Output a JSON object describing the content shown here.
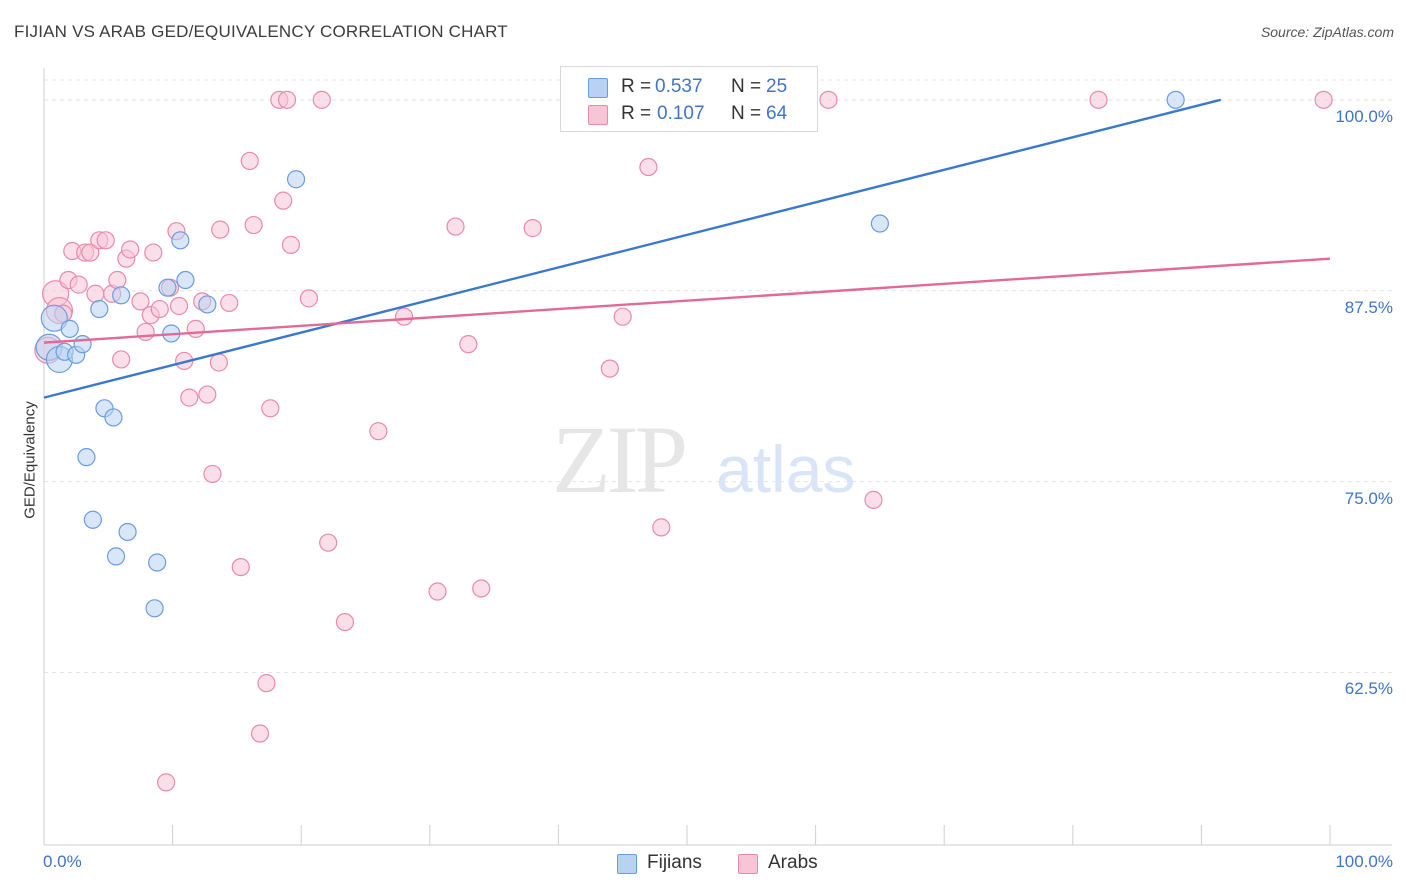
{
  "header": {
    "title": "FIJIAN VS ARAB GED/EQUIVALENCY CORRELATION CHART",
    "source": "Source: ZipAtlas.com"
  },
  "watermark": {
    "zip": "ZIP",
    "atlas": "atlas"
  },
  "legend": {
    "rows": [
      {
        "r_key": "R =",
        "r_value": "0.537",
        "n_key": "N =",
        "n_value": "25",
        "fill": "#b9d1f3",
        "stroke": "#6a9ce0"
      },
      {
        "r_key": "R =",
        "r_value": "0.107",
        "n_key": "N =",
        "n_value": "64",
        "fill": "#f7c5d5",
        "stroke": "#e98aaa"
      }
    ]
  },
  "bottom_legend": {
    "fijians": "Fijians",
    "arabs": "Arabs"
  },
  "colors": {
    "blue": "#3a78d0",
    "pink": "#e06b96",
    "blue_fill": "#b9d1f3",
    "pink_fill": "#f7c5d5",
    "tick_text": "#3f74c7"
  },
  "chart_data": {
    "type": "scatter",
    "title": "FIJIAN VS ARAB GED/EQUIVALENCY CORRELATION CHART",
    "xlabel": "",
    "ylabel": "GED/Equivalency",
    "xlim": [
      0,
      100
    ],
    "ylim": [
      51.2,
      101.3
    ],
    "x_tick_labels": [
      "0.0%",
      "100.0%"
    ],
    "y_ticks": [
      62.5,
      75.0,
      87.5,
      100.0
    ],
    "y_tick_labels": [
      "62.5%",
      "75.0%",
      "87.5%",
      "100.0%"
    ],
    "grid": true,
    "series": [
      {
        "name": "Fijians",
        "color": "#3a78d0",
        "trend": {
          "x": [
            0,
            91.5
          ],
          "y": [
            80.5,
            100.0
          ]
        },
        "points": [
          [
            0.4,
            83.8
          ],
          [
            0.8,
            85.7
          ],
          [
            1.2,
            83.0
          ],
          [
            1.6,
            83.5
          ],
          [
            2.0,
            85.0
          ],
          [
            2.5,
            83.3
          ],
          [
            3.0,
            84.0
          ],
          [
            3.3,
            76.6
          ],
          [
            3.8,
            72.5
          ],
          [
            4.3,
            86.3
          ],
          [
            4.7,
            79.8
          ],
          [
            5.4,
            79.2
          ],
          [
            5.6,
            70.1
          ],
          [
            6.0,
            87.2
          ],
          [
            6.5,
            71.7
          ],
          [
            8.6,
            66.7
          ],
          [
            8.8,
            69.7
          ],
          [
            9.6,
            87.7
          ],
          [
            9.9,
            84.7
          ],
          [
            10.6,
            90.8
          ],
          [
            11.0,
            88.2
          ],
          [
            12.7,
            86.6
          ],
          [
            19.6,
            94.8
          ],
          [
            65.0,
            91.9
          ],
          [
            88.0,
            100.0
          ]
        ]
      },
      {
        "name": "Arabs",
        "color": "#e06b96",
        "trend": {
          "x": [
            0,
            100
          ],
          "y": [
            84.1,
            89.6
          ]
        },
        "points": [
          [
            0.3,
            83.6
          ],
          [
            0.9,
            87.3
          ],
          [
            1.2,
            86.2
          ],
          [
            1.5,
            86.0
          ],
          [
            1.9,
            88.2
          ],
          [
            2.2,
            90.1
          ],
          [
            2.7,
            87.9
          ],
          [
            3.2,
            90.0
          ],
          [
            3.6,
            90.0
          ],
          [
            4.0,
            87.3
          ],
          [
            4.3,
            90.8
          ],
          [
            4.8,
            90.8
          ],
          [
            5.3,
            87.3
          ],
          [
            5.7,
            88.2
          ],
          [
            6.0,
            83.0
          ],
          [
            6.4,
            89.6
          ],
          [
            6.7,
            90.2
          ],
          [
            7.5,
            86.8
          ],
          [
            7.9,
            84.8
          ],
          [
            8.3,
            85.9
          ],
          [
            8.5,
            90.0
          ],
          [
            9.0,
            86.3
          ],
          [
            9.5,
            55.3
          ],
          [
            9.8,
            87.7
          ],
          [
            10.3,
            91.4
          ],
          [
            10.5,
            86.5
          ],
          [
            10.9,
            82.9
          ],
          [
            11.3,
            80.5
          ],
          [
            11.8,
            85.0
          ],
          [
            12.3,
            86.8
          ],
          [
            12.7,
            80.7
          ],
          [
            13.1,
            75.5
          ],
          [
            13.6,
            82.8
          ],
          [
            13.7,
            91.5
          ],
          [
            14.4,
            86.7
          ],
          [
            15.3,
            69.4
          ],
          [
            16.0,
            96.0
          ],
          [
            16.3,
            91.8
          ],
          [
            16.8,
            58.5
          ],
          [
            17.3,
            61.8
          ],
          [
            17.6,
            79.8
          ],
          [
            18.3,
            100.0
          ],
          [
            18.6,
            93.4
          ],
          [
            18.9,
            100.0
          ],
          [
            19.2,
            90.5
          ],
          [
            20.6,
            87.0
          ],
          [
            21.6,
            100.0
          ],
          [
            22.1,
            71.0
          ],
          [
            23.4,
            65.8
          ],
          [
            26.0,
            78.3
          ],
          [
            28.0,
            85.8
          ],
          [
            30.6,
            67.8
          ],
          [
            32.0,
            91.7
          ],
          [
            33.0,
            84.0
          ],
          [
            34.0,
            68.0
          ],
          [
            38.0,
            91.6
          ],
          [
            44.0,
            82.4
          ],
          [
            45.0,
            85.8
          ],
          [
            47.0,
            95.6
          ],
          [
            48.0,
            72.0
          ],
          [
            61.0,
            100.0
          ],
          [
            64.5,
            73.8
          ],
          [
            82.0,
            100.0
          ],
          [
            99.5,
            100.0
          ]
        ]
      }
    ]
  }
}
